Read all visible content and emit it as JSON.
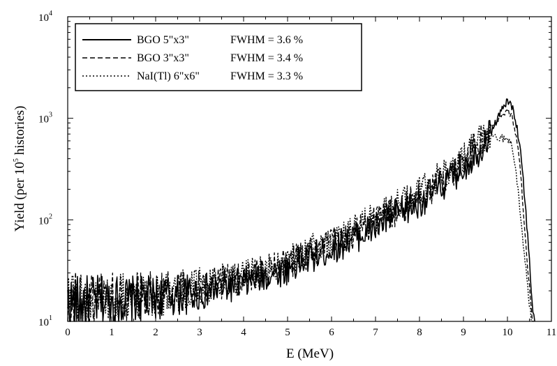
{
  "chart_data": {
    "type": "line",
    "xlabel": "E (MeV)",
    "ylabel_parts": [
      "Yield (per 10",
      "5",
      " histories)"
    ],
    "xlim": [
      0,
      11
    ],
    "ylim": [
      10,
      10000
    ],
    "yscale": "log",
    "x_ticks": [
      "0",
      "1",
      "2",
      "3",
      "4",
      "5",
      "6",
      "7",
      "8",
      "9",
      "10",
      "11"
    ],
    "y_ticks": [
      {
        "base": "10",
        "exp": "1"
      },
      {
        "base": "10",
        "exp": "2"
      },
      {
        "base": "10",
        "exp": "3"
      },
      {
        "base": "10",
        "exp": "4"
      }
    ],
    "legend_position": "top-left",
    "series": [
      {
        "name": "BGO 5\"x3\"",
        "fwhm_label": "FWHM = 3.6 %",
        "style": "solid",
        "key_points": [
          [
            0.0,
            15
          ],
          [
            1.0,
            16
          ],
          [
            2.0,
            17
          ],
          [
            3.0,
            19
          ],
          [
            4.0,
            24
          ],
          [
            5.0,
            33
          ],
          [
            6.0,
            52
          ],
          [
            7.0,
            85
          ],
          [
            8.0,
            150
          ],
          [
            8.6,
            230
          ],
          [
            9.0,
            330
          ],
          [
            9.3,
            450
          ],
          [
            9.6,
            700
          ],
          [
            9.8,
            1050
          ],
          [
            9.95,
            1400
          ],
          [
            10.05,
            1450
          ],
          [
            10.15,
            1150
          ],
          [
            10.3,
            500
          ],
          [
            10.4,
            150
          ],
          [
            10.5,
            40
          ],
          [
            10.58,
            12
          ],
          [
            10.62,
            10
          ]
        ]
      },
      {
        "name": "BGO 3\"x3\"",
        "fwhm_label": "FWHM = 3.4 %",
        "style": "dashed",
        "key_points": [
          [
            0.0,
            16
          ],
          [
            1.0,
            17
          ],
          [
            2.0,
            19
          ],
          [
            3.0,
            21
          ],
          [
            4.0,
            27
          ],
          [
            5.0,
            37
          ],
          [
            6.0,
            58
          ],
          [
            7.0,
            95
          ],
          [
            8.0,
            170
          ],
          [
            8.6,
            260
          ],
          [
            9.0,
            380
          ],
          [
            9.3,
            520
          ],
          [
            9.5,
            720
          ],
          [
            9.7,
            850
          ],
          [
            9.9,
            1100
          ],
          [
            10.0,
            1200
          ],
          [
            10.1,
            1050
          ],
          [
            10.25,
            500
          ],
          [
            10.35,
            150
          ],
          [
            10.45,
            40
          ],
          [
            10.55,
            12
          ],
          [
            10.6,
            10
          ]
        ]
      },
      {
        "name": "NaI(Tl) 6\"x6\"",
        "fwhm_label": "FWHM = 3.3 %",
        "style": "dotted",
        "key_points": [
          [
            0.0,
            16
          ],
          [
            1.0,
            17
          ],
          [
            2.0,
            18
          ],
          [
            3.0,
            22
          ],
          [
            4.0,
            28
          ],
          [
            5.0,
            40
          ],
          [
            6.0,
            62
          ],
          [
            7.0,
            105
          ],
          [
            8.0,
            185
          ],
          [
            8.6,
            290
          ],
          [
            9.0,
            420
          ],
          [
            9.3,
            560
          ],
          [
            9.5,
            700
          ],
          [
            9.7,
            680
          ],
          [
            9.9,
            640
          ],
          [
            10.0,
            620
          ],
          [
            10.1,
            550
          ],
          [
            10.2,
            300
          ],
          [
            10.3,
            100
          ],
          [
            10.4,
            40
          ],
          [
            10.5,
            15
          ],
          [
            10.55,
            10
          ]
        ]
      }
    ]
  }
}
